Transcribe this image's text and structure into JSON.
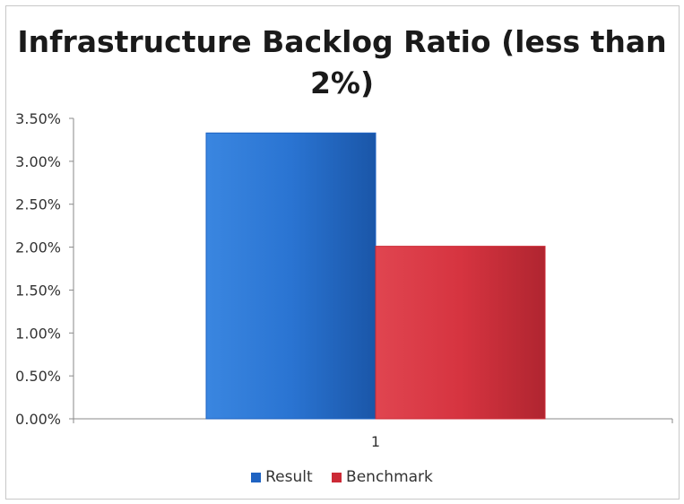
{
  "chart_data": {
    "type": "bar",
    "title_line1": "Infrastructure Backlog Ratio (less than",
    "title_line2": "2%)",
    "categories": [
      "1"
    ],
    "series": [
      {
        "name": "Result",
        "values": [
          0.0333
        ],
        "color": "#1f63c2"
      },
      {
        "name": "Benchmark",
        "values": [
          0.0201
        ],
        "color": "#cc2a36"
      }
    ],
    "ylim": [
      0,
      0.035
    ],
    "yticks": [
      "0.00%",
      "0.50%",
      "1.00%",
      "1.50%",
      "2.00%",
      "2.50%",
      "3.00%",
      "3.50%"
    ],
    "ytick_values": [
      0,
      0.005,
      0.01,
      0.015,
      0.02,
      0.025,
      0.03,
      0.035
    ],
    "grid": false,
    "legend_position": "bottom"
  }
}
